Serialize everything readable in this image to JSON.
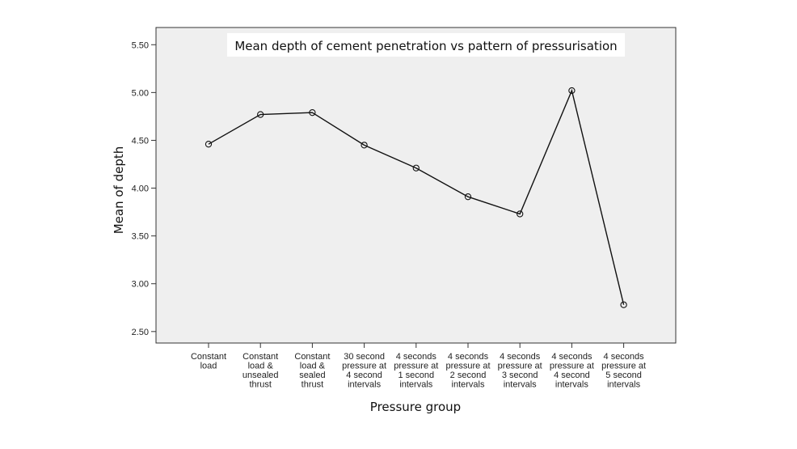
{
  "chart_data": {
    "type": "line",
    "title": "Mean depth of cement penetration vs pattern of pressurisation",
    "xlabel": "Pressure group",
    "ylabel": "Mean of depth",
    "categories": [
      [
        "Constant",
        "load"
      ],
      [
        "Constant",
        "load &",
        "unsealed",
        "thrust"
      ],
      [
        "Constant",
        "load &",
        "sealed",
        "thrust"
      ],
      [
        "30 second",
        "pressure at",
        "4 second",
        "intervals"
      ],
      [
        "4 seconds",
        "pressure at",
        "1 second",
        "intervals"
      ],
      [
        "4 seconds",
        "pressure at",
        "2 second",
        "intervals"
      ],
      [
        "4 seconds",
        "pressure at",
        "3 second",
        "intervals"
      ],
      [
        "4 seconds",
        "pressure at",
        "4 second",
        "intervals"
      ],
      [
        "4 seconds",
        "pressure at",
        "5 second",
        "intervals"
      ]
    ],
    "values": [
      4.46,
      4.77,
      4.79,
      4.45,
      4.21,
      3.91,
      3.73,
      5.02,
      2.78
    ],
    "y_ticks": [
      "2.50",
      "3.00",
      "3.50",
      "4.00",
      "4.50",
      "5.00",
      "5.50"
    ],
    "ylim": [
      2.38,
      5.68
    ],
    "grid": false,
    "legend": "none",
    "colors": {
      "plot_background": "#efefef",
      "line": "#111111",
      "title_box": "#ffffff"
    }
  }
}
